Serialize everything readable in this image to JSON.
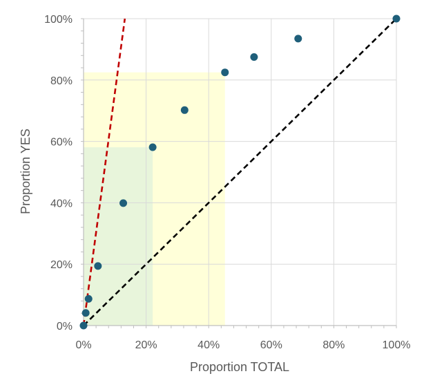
{
  "chart_data": {
    "type": "scatter",
    "title": "",
    "xlabel": "Proportion TOTAL",
    "ylabel": "Proportion YES",
    "xlim": [
      0,
      1
    ],
    "ylim": [
      0,
      1
    ],
    "x_ticks": [
      0,
      0.2,
      0.4,
      0.6,
      0.8,
      1.0
    ],
    "y_ticks": [
      0,
      0.2,
      0.4,
      0.6,
      0.8,
      1.0
    ],
    "x_tick_labels": [
      "0%",
      "20%",
      "40%",
      "60%",
      "80%",
      "100%"
    ],
    "y_tick_labels": [
      "0%",
      "20%",
      "40%",
      "60%",
      "80%",
      "100%"
    ],
    "grid": true,
    "legend": "none",
    "series": [
      {
        "name": "gains",
        "marker": "circle",
        "color": "#1f5f7a",
        "points": [
          {
            "x": 0.0,
            "y": 0.0
          },
          {
            "x": 0.007,
            "y": 0.041
          },
          {
            "x": 0.016,
            "y": 0.087
          },
          {
            "x": 0.046,
            "y": 0.194
          },
          {
            "x": 0.127,
            "y": 0.399
          },
          {
            "x": 0.221,
            "y": 0.581
          },
          {
            "x": 0.323,
            "y": 0.702
          },
          {
            "x": 0.452,
            "y": 0.825
          },
          {
            "x": 0.545,
            "y": 0.875
          },
          {
            "x": 0.686,
            "y": 0.935
          },
          {
            "x": 1.0,
            "y": 1.0
          }
        ]
      }
    ],
    "reference_lines": [
      {
        "name": "random-baseline",
        "style": "dashed",
        "color": "#000000",
        "from": [
          0,
          0
        ],
        "to": [
          1,
          1
        ]
      },
      {
        "name": "perfect-model",
        "style": "dashed",
        "color": "#c00000",
        "from": [
          0,
          0
        ],
        "to": [
          0.132,
          1.0
        ]
      }
    ],
    "shaded_regions": [
      {
        "name": "yellow-region",
        "color": "#ffffcc",
        "opacity": 0.75,
        "x": [
          0,
          0.452
        ],
        "y": [
          0,
          0.825
        ]
      },
      {
        "name": "green-region",
        "color": "#dcefdc",
        "opacity": 0.65,
        "x": [
          0,
          0.221
        ],
        "y": [
          0,
          0.581
        ]
      }
    ]
  }
}
